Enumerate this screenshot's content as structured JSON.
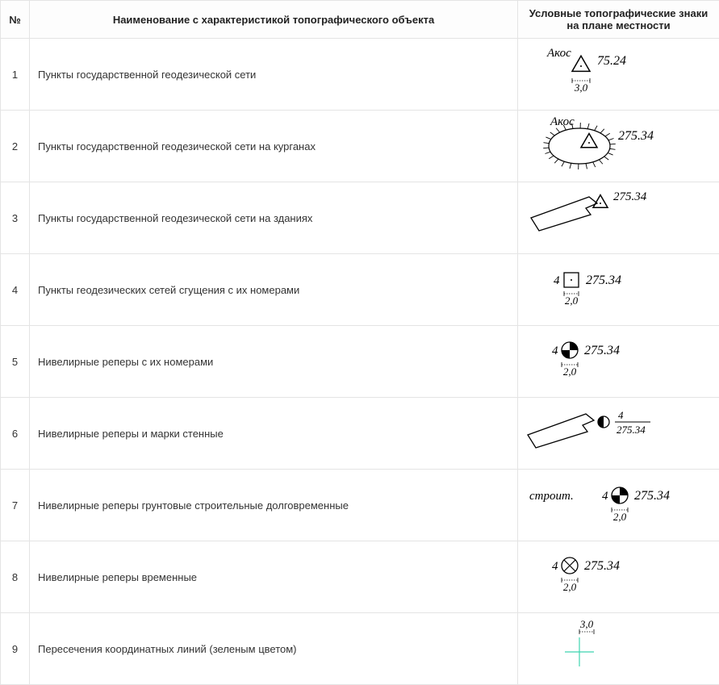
{
  "headers": {
    "num": "№",
    "name": "Наименование с характеристикой топографического объекта",
    "sym": "Условные топографические знаки на плане местности"
  },
  "rows": [
    {
      "num": "1",
      "name": "Пункты государственной геодезической сети",
      "sym": {
        "type": "geodetic",
        "label": "Акос",
        "elev": "75.24",
        "dim": "3,0"
      }
    },
    {
      "num": "2",
      "name": "Пункты государственной геодезической сети на курганах",
      "sym": {
        "type": "geodetic-kurgan",
        "label": "Акос",
        "elev": "275.34"
      }
    },
    {
      "num": "3",
      "name": "Пункты государственной геодезической сети на зданиях",
      "sym": {
        "type": "geodetic-building",
        "elev": "275.34"
      }
    },
    {
      "num": "4",
      "name": "Пункты геодезических сетей сгущения с их номерами",
      "sym": {
        "type": "thickening",
        "num": "4",
        "elev": "275.34",
        "dim": "2,0"
      }
    },
    {
      "num": "5",
      "name": "Нивелирные реперы с их номерами",
      "sym": {
        "type": "benchmark",
        "num": "4",
        "elev": "275.34",
        "dim": "2,0"
      }
    },
    {
      "num": "6",
      "name": "Нивелирные реперы и марки стенные",
      "sym": {
        "type": "wall-benchmark",
        "num": "4",
        "elev": "275.34"
      }
    },
    {
      "num": "7",
      "name": "Нивелирные реперы грунтовые строительные долговременные",
      "sym": {
        "type": "construction-benchmark",
        "prefix": "строит.",
        "num": "4",
        "elev": "275.34",
        "dim": "2,0"
      }
    },
    {
      "num": "8",
      "name": "Нивелирные реперы временные",
      "sym": {
        "type": "temporary-benchmark",
        "num": "4",
        "elev": "275.34",
        "dim": "2,0"
      }
    },
    {
      "num": "9",
      "name": "Пересечения координатных линий (зеленым цветом)",
      "sym": {
        "type": "coord-cross",
        "dim": "3,0",
        "color": "#3fd4b0"
      }
    }
  ],
  "style": {
    "stroke": "#000000",
    "dimStroke": "#000000",
    "textColor": "#000000",
    "fontSize": 15,
    "fontSizeSmall": 13
  }
}
